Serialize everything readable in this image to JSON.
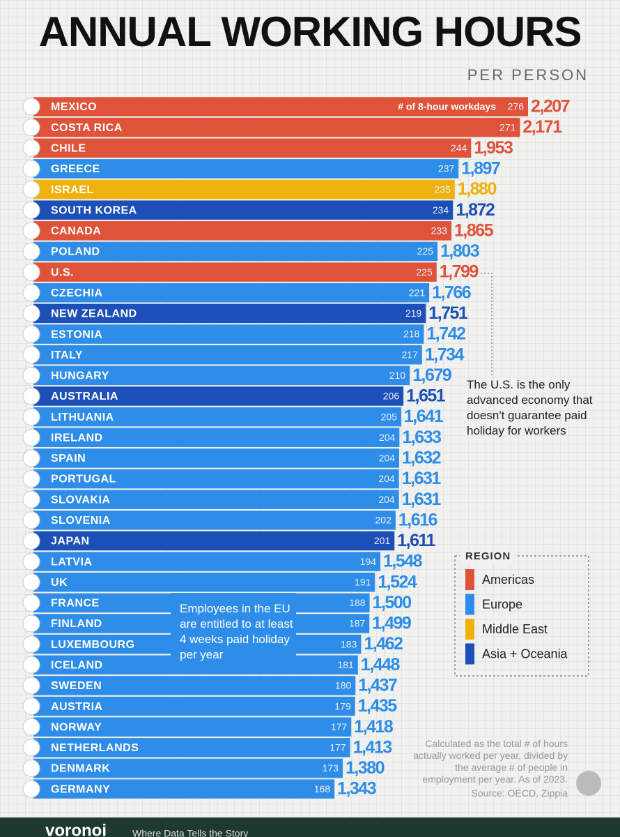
{
  "chart_data": {
    "type": "bar",
    "orientation": "horizontal",
    "title": "ANNUAL WORKING HOURS",
    "subtitle": "PER PERSON",
    "categories": [
      "MEXICO",
      "COSTA RICA",
      "CHILE",
      "GREECE",
      "ISRAEL",
      "SOUTH KOREA",
      "CANADA",
      "POLAND",
      "U.S.",
      "CZECHIA",
      "NEW ZEALAND",
      "ESTONIA",
      "ITALY",
      "HUNGARY",
      "AUSTRALIA",
      "LITHUANIA",
      "IRELAND",
      "SPAIN",
      "PORTUGAL",
      "SLOVAKIA",
      "SLOVENIA",
      "JAPAN",
      "LATVIA",
      "UK",
      "FRANCE",
      "FINLAND",
      "LUXEMBOURG",
      "ICELAND",
      "SWEDEN",
      "AUSTRIA",
      "NORWAY",
      "NETHERLANDS",
      "DENMARK",
      "GERMANY"
    ],
    "values": [
      2207,
      2171,
      1953,
      1897,
      1880,
      1872,
      1865,
      1803,
      1799,
      1766,
      1751,
      1742,
      1734,
      1679,
      1651,
      1641,
      1633,
      1632,
      1631,
      1631,
      1616,
      1611,
      1548,
      1524,
      1500,
      1499,
      1462,
      1448,
      1437,
      1435,
      1418,
      1413,
      1380,
      1343
    ],
    "value_labels": [
      "2,207",
      "2,171",
      "1,953",
      "1,897",
      "1,880",
      "1,872",
      "1,865",
      "1,803",
      "1,799",
      "1,766",
      "1,751",
      "1,742",
      "1,734",
      "1,679",
      "1,651",
      "1,641",
      "1,633",
      "1,632",
      "1,631",
      "1,631",
      "1,616",
      "1,611",
      "1,548",
      "1,524",
      "1,500",
      "1,499",
      "1,462",
      "1,448",
      "1,437",
      "1,435",
      "1,418",
      "1,413",
      "1,380",
      "1,343"
    ],
    "workdays_label": "# of 8-hour workdays",
    "workdays": [
      276,
      271,
      244,
      237,
      235,
      234,
      233,
      225,
      225,
      221,
      219,
      218,
      217,
      210,
      206,
      205,
      204,
      204,
      204,
      204,
      202,
      201,
      194,
      191,
      188,
      187,
      183,
      181,
      180,
      179,
      177,
      177,
      173,
      168
    ],
    "regions": [
      "Americas",
      "Americas",
      "Americas",
      "Europe",
      "Middle East",
      "Asia + Oceania",
      "Americas",
      "Europe",
      "Americas",
      "Europe",
      "Asia + Oceania",
      "Europe",
      "Europe",
      "Europe",
      "Asia + Oceania",
      "Europe",
      "Europe",
      "Europe",
      "Europe",
      "Europe",
      "Europe",
      "Asia + Oceania",
      "Europe",
      "Europe",
      "Europe",
      "Europe",
      "Europe",
      "Europe",
      "Europe",
      "Europe",
      "Europe",
      "Europe",
      "Europe",
      "Europe"
    ],
    "legend": {
      "title": "REGION",
      "items": [
        {
          "name": "Americas",
          "color": "#e0533b"
        },
        {
          "name": "Europe",
          "color": "#2e8de8"
        },
        {
          "name": "Middle East",
          "color": "#efb20c"
        },
        {
          "name": "Asia + Oceania",
          "color": "#1d4fb8"
        }
      ]
    },
    "annotations": [
      {
        "text": "The U.S. is the only advanced economy that doesn't guarantee paid holiday for workers"
      },
      {
        "text": "Employees in the EU are entitled to at least 4 weeks paid holiday per year"
      }
    ],
    "note": "Calculated as the total # of hours actually worked per year, divided by the average # of people in employment per year. As of 2023.",
    "source": "Source: OECD, Zippia",
    "brand": "voronoi",
    "tagline": "Where Data Tells the Story"
  }
}
